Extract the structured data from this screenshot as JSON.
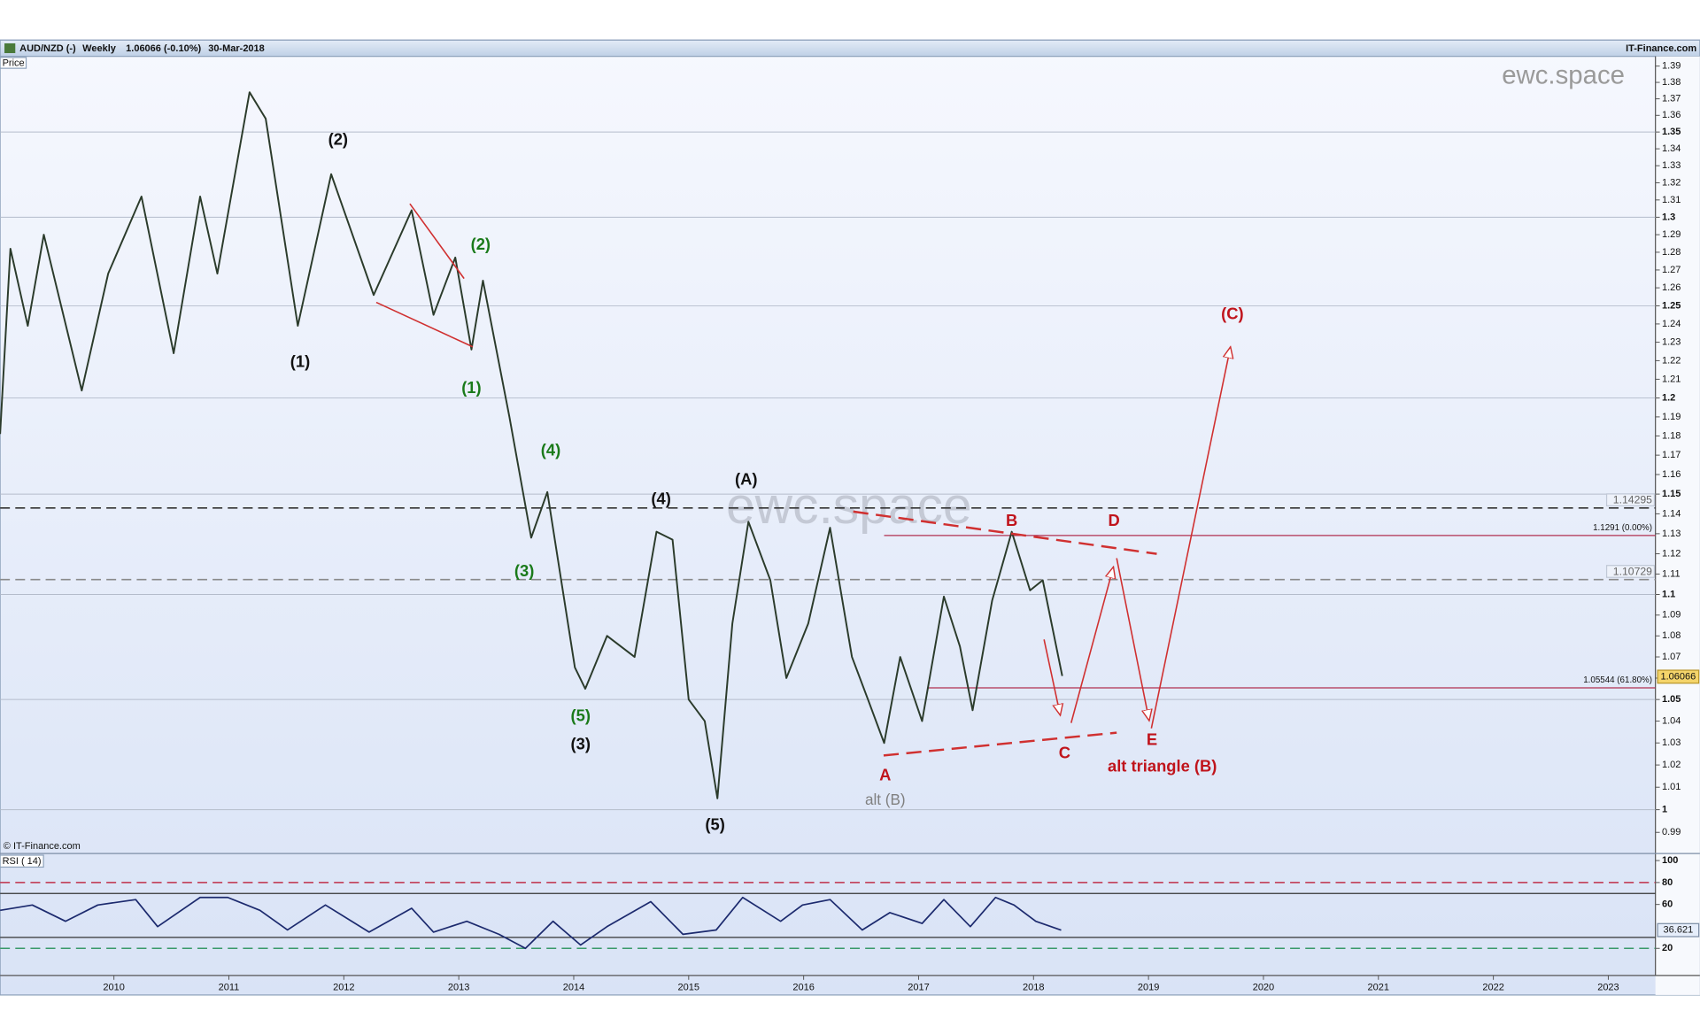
{
  "header": {
    "symbol": "AUD/NZD (-)",
    "interval": "Weekly",
    "quote": "1.06066 (-0.10%)",
    "date": "30-Mar-2018",
    "source": "IT-Finance.com"
  },
  "panel_label": "Price",
  "copyright": "© IT-Finance.com",
  "watermark": "ewc.space",
  "chart_data": [
    {
      "type": "line",
      "log": true,
      "color": "#2b3b2b",
      "x": [
        2009.01,
        2009.1,
        2009.25,
        2009.39,
        2009.72,
        2009.95,
        2010.24,
        2010.52,
        2010.75,
        2010.9,
        2011.18,
        2011.32,
        2011.6,
        2011.89,
        2012.26,
        2012.59,
        2012.78,
        2012.97,
        2013.11,
        2013.21,
        2013.44,
        2013.63,
        2013.77,
        2014.01,
        2014.1,
        2014.29,
        2014.53,
        2014.72,
        2014.86,
        2015.0,
        2015.14,
        2015.25,
        2015.38,
        2015.52,
        2015.71,
        2015.85,
        2016.04,
        2016.23,
        2016.42,
        2016.56,
        2016.7,
        2016.84,
        2017.03,
        2017.22,
        2017.36,
        2017.47,
        2017.64,
        2017.81,
        2017.97,
        2018.08,
        2018.25
      ],
      "values": [
        1.181,
        1.282,
        1.239,
        1.29,
        1.204,
        1.268,
        1.312,
        1.224,
        1.312,
        1.268,
        1.374,
        1.358,
        1.239,
        1.325,
        1.256,
        1.304,
        1.245,
        1.277,
        1.226,
        1.264,
        1.19,
        1.128,
        1.151,
        1.065,
        1.055,
        1.08,
        1.07,
        1.131,
        1.127,
        1.05,
        1.04,
        1.005,
        1.086,
        1.136,
        1.107,
        1.06,
        1.086,
        1.133,
        1.07,
        1.05,
        1.03,
        1.07,
        1.04,
        1.099,
        1.075,
        1.045,
        1.097,
        1.131,
        1.102,
        1.107,
        1.061
      ],
      "xlim": [
        2009.01,
        2023.41
      ],
      "ylim": [
        0.981,
        1.396
      ],
      "yticks": [
        0.99,
        1,
        1.01,
        1.02,
        1.03,
        1.04,
        1.05,
        1.06,
        1.07,
        1.08,
        1.09,
        1.1,
        1.11,
        1.12,
        1.13,
        1.14,
        1.15,
        1.16,
        1.17,
        1.18,
        1.19,
        1.2,
        1.21,
        1.22,
        1.23,
        1.24,
        1.25,
        1.26,
        1.27,
        1.28,
        1.29,
        1.3,
        1.31,
        1.32,
        1.33,
        1.34,
        1.35,
        1.36,
        1.37,
        1.38,
        1.39
      ],
      "grid": true,
      "current_value": 1.06066,
      "levels": [
        {
          "value": 1.14295,
          "color": "#333333",
          "dash": true
        },
        {
          "value": 1.10729,
          "color": "#8a8a8a",
          "dash": true
        },
        {
          "value": 1.1291,
          "label": "1.1291 (0.00%)",
          "color": "#b03050",
          "dash": false,
          "from": 2016.7
        },
        {
          "value": 1.05544,
          "label": "1.05544 (61.80%)",
          "color": "#b03050",
          "dash": false,
          "from": 2017.08
        }
      ],
      "annotations": [
        {
          "text": "(2)",
          "x": 2011.95,
          "y": 1.345,
          "color": "#111111",
          "bold": true
        },
        {
          "text": "(1)",
          "x": 2011.62,
          "y": 1.219,
          "color": "#111111",
          "bold": true
        },
        {
          "text": "(2)",
          "x": 2013.19,
          "y": 1.284,
          "color": "#1a7a1a",
          "bold": true
        },
        {
          "text": "(1)",
          "x": 2013.11,
          "y": 1.205,
          "color": "#1a7a1a",
          "bold": true
        },
        {
          "text": "(4)",
          "x": 2013.8,
          "y": 1.172,
          "color": "#1a7a1a",
          "bold": true
        },
        {
          "text": "(3)",
          "x": 2013.57,
          "y": 1.111,
          "color": "#1a7a1a",
          "bold": true
        },
        {
          "text": "(5)",
          "x": 2014.06,
          "y": 1.042,
          "color": "#1a7a1a",
          "bold": true
        },
        {
          "text": "(3)",
          "x": 2014.06,
          "y": 1.029,
          "color": "#111111",
          "bold": true
        },
        {
          "text": "(4)",
          "x": 2014.76,
          "y": 1.147,
          "color": "#111111",
          "bold": true
        },
        {
          "text": "(A)",
          "x": 2015.5,
          "y": 1.157,
          "color": "#111111",
          "bold": true
        },
        {
          "text": "(5)",
          "x": 2015.23,
          "y": 0.993,
          "color": "#111111",
          "bold": true
        },
        {
          "text": "A",
          "x": 2016.71,
          "y": 1.015,
          "color": "#c0141c",
          "bold": true
        },
        {
          "text": "alt (B)",
          "x": 2016.71,
          "y": 1.004,
          "color": "#808080",
          "bold": false
        },
        {
          "text": "B",
          "x": 2017.81,
          "y": 1.136,
          "color": "#c0141c",
          "bold": true
        },
        {
          "text": "C",
          "x": 2018.27,
          "y": 1.025,
          "color": "#c0141c",
          "bold": true
        },
        {
          "text": "D",
          "x": 2018.7,
          "y": 1.136,
          "color": "#c0141c",
          "bold": true
        },
        {
          "text": "E",
          "x": 2019.03,
          "y": 1.031,
          "color": "#c0141c",
          "bold": true
        },
        {
          "text": "alt triangle (B)",
          "x": 2019.12,
          "y": 1.019,
          "color": "#c0141c",
          "bold": true
        },
        {
          "text": "(C)",
          "x": 2019.73,
          "y": 1.245,
          "color": "#c0141c",
          "bold": true
        }
      ]
    },
    {
      "type": "line",
      "title": "RSI ( 14)",
      "color": "#1c2a6e",
      "x": [
        2009.01,
        2009.29,
        2009.58,
        2009.86,
        2010.19,
        2010.38,
        2010.75,
        2010.99,
        2011.27,
        2011.51,
        2011.84,
        2012.22,
        2012.59,
        2012.78,
        2013.07,
        2013.35,
        2013.58,
        2013.82,
        2014.06,
        2014.29,
        2014.67,
        2014.95,
        2015.24,
        2015.47,
        2015.8,
        2015.99,
        2016.23,
        2016.51,
        2016.75,
        2017.03,
        2017.22,
        2017.45,
        2017.67,
        2017.83,
        2018.02,
        2018.24
      ],
      "values": [
        54.6,
        59.5,
        44.7,
        59.5,
        64.4,
        39.8,
        66.4,
        66.4,
        54.6,
        36.8,
        59.5,
        34.8,
        56.5,
        34.8,
        44.7,
        32.8,
        20,
        44.7,
        23,
        39.8,
        62.5,
        32.8,
        36.8,
        66.4,
        44.7,
        59.5,
        64.4,
        36.8,
        52.6,
        42.7,
        64.4,
        39.8,
        66.4,
        59.5,
        44.7,
        36.6
      ],
      "xlim": [
        2009.01,
        2023.41
      ],
      "ylim": [
        -4.7,
        105.9
      ],
      "yticks": [
        20,
        60,
        80,
        100
      ],
      "xticks": [
        2010,
        2011,
        2012,
        2013,
        2014,
        2015,
        2016,
        2017,
        2018,
        2019,
        2020,
        2021,
        2022,
        2023
      ],
      "current_value": 36.621,
      "levels": [
        {
          "value": 80,
          "color": "#c0304a",
          "dash": true
        },
        {
          "value": 70,
          "color": "#333333",
          "dash": false
        },
        {
          "value": 30,
          "color": "#333333",
          "dash": false
        },
        {
          "value": 20,
          "color": "#3a9a6a",
          "dash": true
        }
      ]
    }
  ]
}
